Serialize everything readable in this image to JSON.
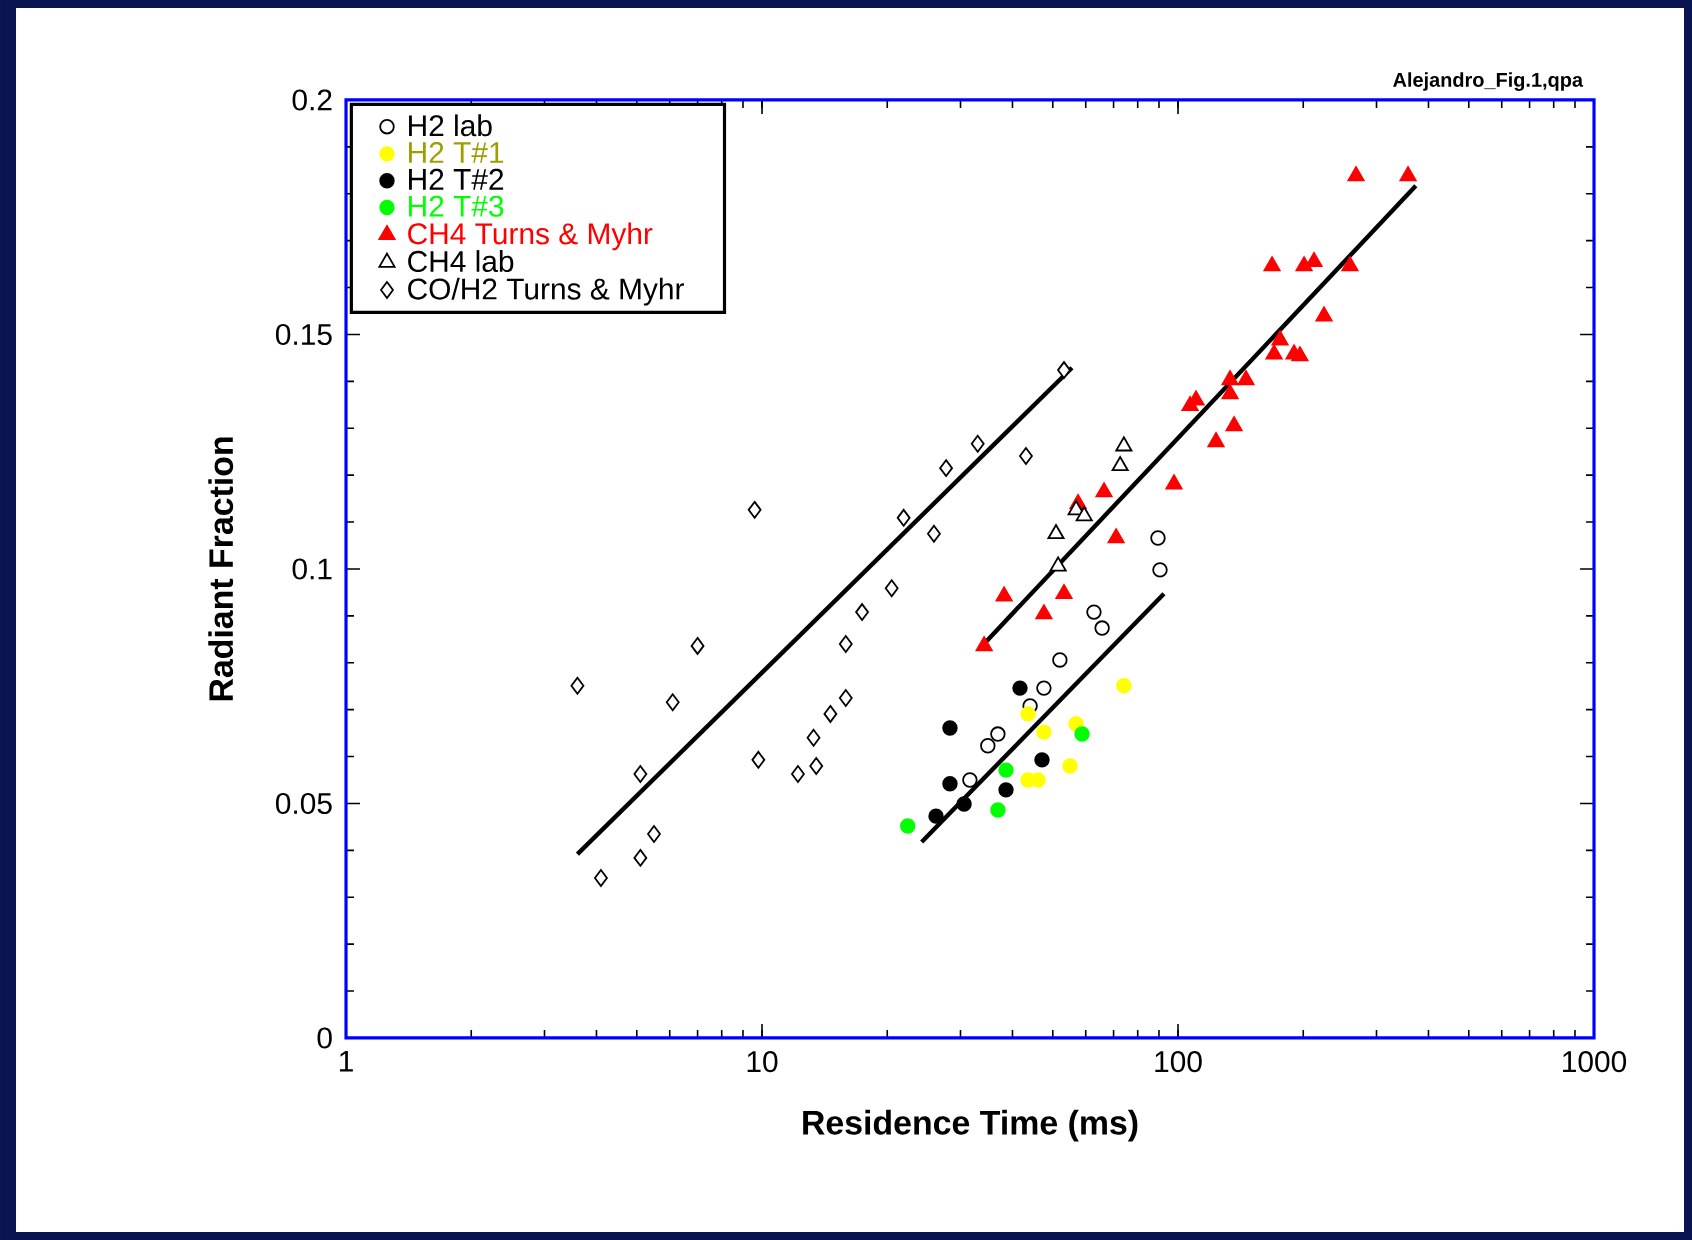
{
  "chart_data": {
    "type": "scatter",
    "xlabel": "Residence Time (ms)",
    "ylabel": "Radiant Fraction",
    "annotations": [
      "Alejandro_Fig.1,qpa"
    ],
    "log": "x",
    "xlim": [
      1,
      1000
    ],
    "ylim": [
      0,
      0.2
    ],
    "xticks": [
      1,
      10,
      100,
      1000
    ],
    "yticks": [
      0,
      0.05,
      0.1,
      0.15,
      0.2
    ],
    "grid": false,
    "legend": "top left",
    "series": [
      {
        "name": "H2 lab",
        "color": "#ffffff",
        "marker": "circle",
        "x": [
          31.6,
          34.9,
          36.9,
          44.1,
          47.6,
          52.0,
          62.8,
          65.7,
          89.5,
          90.5
        ],
        "values": [
          0.055,
          0.0623,
          0.0648,
          0.0708,
          0.0746,
          0.0806,
          0.0908,
          0.0874,
          0.1066,
          0.0998
        ]
      },
      {
        "name": "H2 T#1",
        "color": "#ffff00",
        "marker": "circle",
        "x": [
          43.6,
          47.6,
          56.9,
          55.0,
          43.6,
          46.1,
          74.1
        ],
        "values": [
          0.0691,
          0.0652,
          0.067,
          0.058,
          0.055,
          0.055,
          0.0751
        ]
      },
      {
        "name": "H2 T#2",
        "color": "#000000",
        "marker": "circle",
        "x": [
          41.7,
          28.3,
          47.1,
          28.3,
          30.6,
          38.6,
          26.2
        ],
        "values": [
          0.0746,
          0.0661,
          0.0593,
          0.0542,
          0.0499,
          0.0529,
          0.0473
        ]
      },
      {
        "name": "H2 T#3",
        "color": "#00ff00",
        "marker": "circle",
        "x": [
          22.4,
          36.9,
          38.6,
          58.8
        ],
        "values": [
          0.0452,
          0.0486,
          0.0571,
          0.0648
        ]
      },
      {
        "name": "CH4 Turns & Myhr",
        "color": "#ff0000",
        "marker": "triangle",
        "x": [
          34.2,
          38.2,
          47.6,
          53.2,
          57.5,
          66.4,
          71.0,
          97.8,
          106.9,
          110.5,
          123.4,
          136.4,
          133.4,
          133.4,
          145.7,
          170.2,
          175.9,
          190.1,
          196.4,
          168.3,
          200.9,
          212.3,
          259.0,
          224.4,
          267.9,
          357.3
        ],
        "values": [
          0.0836,
          0.0942,
          0.0904,
          0.0947,
          0.1139,
          0.1164,
          0.1066,
          0.1181,
          0.1348,
          0.136,
          0.1271,
          0.1305,
          0.1403,
          0.1373,
          0.1403,
          0.1458,
          0.1488,
          0.1458,
          0.1454,
          0.1646,
          0.1646,
          0.1655,
          0.1646,
          0.1539,
          0.1838,
          0.1838
        ]
      },
      {
        "name": "CH4 lab",
        "color": "#ffffff",
        "marker": "triangle",
        "x": [
          74.1,
          72.6,
          50.9,
          56.9,
          59.5,
          51.5
        ],
        "values": [
          0.1262,
          0.122,
          0.1075,
          0.1126,
          0.1113,
          0.1006
        ]
      },
      {
        "name": "CO/H2 Turns & Myhr",
        "color": "#ffffff",
        "marker": "diamond",
        "x": [
          53.2,
          33.0,
          27.7,
          43.1,
          9.6,
          21.9,
          25.9,
          20.5,
          17.4,
          15.9,
          7.0,
          3.6,
          6.1,
          15.9,
          14.6,
          13.3,
          13.5,
          12.2,
          9.8,
          5.1,
          5.5,
          5.1,
          4.1
        ],
        "values": [
          0.1424,
          0.1267,
          0.1215,
          0.1241,
          0.1126,
          0.1109,
          0.1075,
          0.0959,
          0.0908,
          0.084,
          0.0836,
          0.0751,
          0.0716,
          0.0725,
          0.0691,
          0.064,
          0.058,
          0.0563,
          0.0593,
          0.0563,
          0.0435,
          0.0384,
          0.0341
        ]
      },
      {
        "type": "line",
        "color": "#000000",
        "x": [
          3.6,
          55.6
        ],
        "values": [
          0.0392,
          0.1429
        ]
      },
      {
        "type": "line",
        "color": "#000000",
        "x": [
          33.8,
          373
        ],
        "values": [
          0.0836,
          0.1817
        ]
      },
      {
        "type": "line",
        "color": "#000000",
        "x": [
          24.2,
          92.5
        ],
        "values": [
          0.0418,
          0.0947
        ]
      }
    ]
  }
}
